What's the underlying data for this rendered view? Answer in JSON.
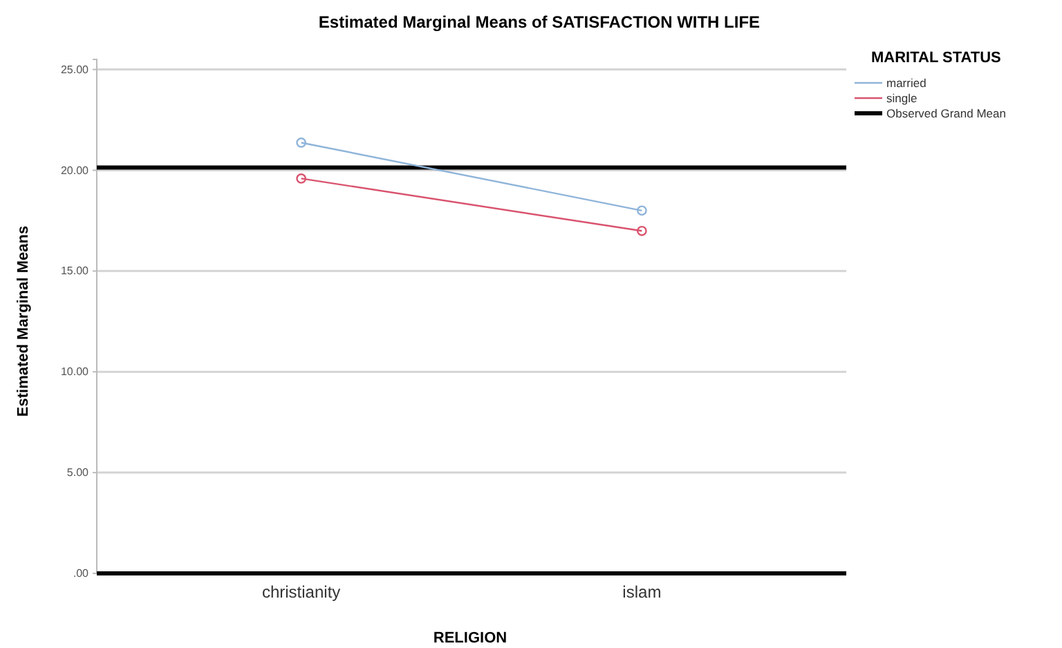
{
  "chart_data": {
    "type": "line",
    "title": "Estimated Marginal Means of SATISFACTION WITH LIFE",
    "xlabel": "RELIGION",
    "ylabel": "Estimated Marginal Means",
    "legend_title": "MARITAL STATUS",
    "categories": [
      "christianity",
      "islam"
    ],
    "series": [
      {
        "name": "married",
        "color": "#8fb4d9",
        "values": [
          21.37,
          18.0
        ]
      },
      {
        "name": "single",
        "color": "#d9536e",
        "values": [
          19.59,
          16.99
        ]
      }
    ],
    "ylim": [
      0,
      25.5
    ],
    "yticks": [
      {
        "value": 0,
        "label": ".00"
      },
      {
        "value": 5,
        "label": "5.00"
      },
      {
        "value": 10,
        "label": "10.00"
      },
      {
        "value": 15,
        "label": "15.00"
      },
      {
        "value": 20,
        "label": "20.00"
      },
      {
        "value": 25,
        "label": "25.00"
      }
    ],
    "ref_lines": [
      {
        "axis": "y",
        "value": 20.14,
        "label": "Observed Grand Mean",
        "color": "#000000"
      }
    ],
    "grid": "y",
    "legend": "top right",
    "marker": "circle",
    "line_style": "solid"
  }
}
